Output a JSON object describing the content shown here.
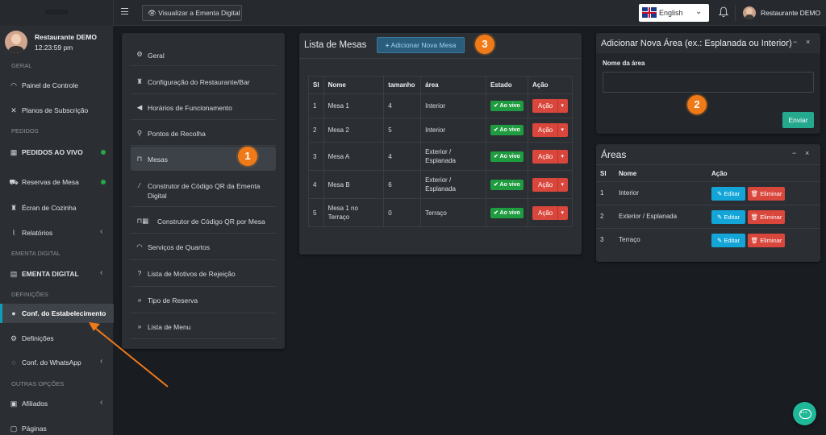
{
  "topbar": {
    "view_menu_label": "Visualizar a Ementa Digital",
    "language": "English",
    "user_name": "Restaurante DEMO"
  },
  "sidebar": {
    "user_name": "Restaurante DEMO",
    "time": "12:23:59 pm",
    "sections": {
      "geral": "GERAL",
      "pedidos": "PEDIDOS",
      "ementa": "EMENTA DIGITAL",
      "definicoes": "DEFINIÇÕES",
      "outras": "OUTRAS OPÇÕES"
    },
    "items": {
      "painel": "Painel de Controle",
      "planos": "Planos de Subscrição",
      "pedidos_ao_vivo": "PEDIDOS AO VIVO",
      "reservas": "Reservas de Mesa",
      "ecran": "Écran de Cozinha",
      "relatorios": "Relatórios",
      "ementa_digital": "EMENTA DIGITAL",
      "conf_estab": "Conf. do Estabelecimento",
      "definicoes": "Definições",
      "whatsapp": "Conf. do WhatsApp",
      "afiliados": "Afiliados",
      "paginas": "Páginas"
    }
  },
  "settings_menu": [
    {
      "label": "Geral",
      "icon": "gear-icon"
    },
    {
      "label": "Configuração do Restaurante/Bar",
      "icon": "chef-icon"
    },
    {
      "label": "Horários de Funcionamento",
      "icon": "megaphone-icon"
    },
    {
      "label": "Pontos de Recolha",
      "icon": "map-pin-icon"
    },
    {
      "label": "Mesas",
      "icon": "table-icon"
    },
    {
      "label": "Construtor de Código QR da Ementa Digital",
      "icon": "wand-icon"
    },
    {
      "label": "Construtor de Código QR por Mesa",
      "icon": "qr-table-icon"
    },
    {
      "label": "Serviços de Quartos",
      "icon": "bell-service-icon"
    },
    {
      "label": "Lista de Motivos de Rejeição",
      "icon": "question-icon"
    },
    {
      "label": "Tipo de Reserva",
      "icon": "double-chevron-icon"
    },
    {
      "label": "Lista de Menu",
      "icon": "double-chevron-icon"
    }
  ],
  "mesas": {
    "title": "Lista de Mesas",
    "add_button": "Adicionar Nova Mesa",
    "columns": [
      "Sl",
      "Nome",
      "tamanho",
      "área",
      "Estado",
      "Ação"
    ],
    "status_label": "Ao vivo",
    "action_label": "Ação",
    "rows": [
      {
        "sl": "1",
        "nome": "Mesa 1",
        "tamanho": "4",
        "area": "Interior"
      },
      {
        "sl": "2",
        "nome": "Mesa 2",
        "tamanho": "5",
        "area": "Interior"
      },
      {
        "sl": "3",
        "nome": "Mesa A",
        "tamanho": "4",
        "area": "Exterior / Esplanada"
      },
      {
        "sl": "4",
        "nome": "Mesa B",
        "tamanho": "6",
        "area": "Exterior / Esplanada"
      },
      {
        "sl": "5",
        "nome": "Mesa 1 no Terraço",
        "tamanho": "0",
        "area": "Terraço"
      }
    ]
  },
  "area_form": {
    "title": "Adicionar Nova Área (ex.: Esplanada ou Interior)",
    "field_label": "Nome da área",
    "field_value": "",
    "submit": "Enviar",
    "minimize": "−",
    "close": "×"
  },
  "areas": {
    "title": "Áreas",
    "columns": [
      "Sl",
      "Nome",
      "Ação"
    ],
    "edit_label": "Editar",
    "delete_label": "Eliminar",
    "rows": [
      {
        "sl": "1",
        "nome": "Interior"
      },
      {
        "sl": "2",
        "nome": "Exterior / Esplanada"
      },
      {
        "sl": "3",
        "nome": "Terraço"
      }
    ]
  },
  "badges": [
    "1",
    "2",
    "3"
  ],
  "colors": {
    "accent": "#0d9fb8",
    "danger": "#d9463b",
    "success": "#1f9c3f",
    "info": "#13a5d8",
    "annotation": "#f07a17"
  }
}
